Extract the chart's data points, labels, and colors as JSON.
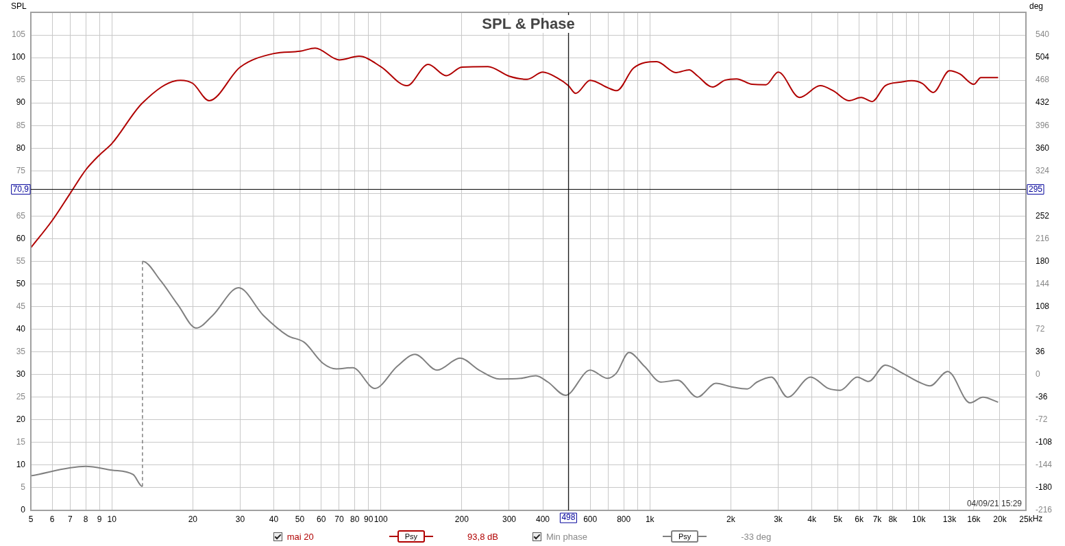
{
  "chart_data": {
    "type": "line",
    "title": "SPL & Phase",
    "ylabel": "SPL",
    "y2label": "deg",
    "xlim": [
      5,
      25000
    ],
    "xticks": [
      5,
      6,
      7,
      8,
      9,
      10,
      20,
      30,
      40,
      50,
      60,
      70,
      80,
      90,
      100,
      200,
      300,
      400,
      {
        "value": 500,
        "label": null
      },
      600,
      {
        "value": 700,
        "label": null
      },
      800,
      {
        "value": 900,
        "label": null
      },
      {
        "value": 1000,
        "label": "1k"
      },
      {
        "value": 2000,
        "label": "2k"
      },
      {
        "value": 3000,
        "label": "3k"
      },
      {
        "value": 4000,
        "label": "4k"
      },
      {
        "value": 5000,
        "label": "5k"
      },
      {
        "value": 6000,
        "label": "6k"
      },
      {
        "value": 7000,
        "label": "7k"
      },
      {
        "value": 8000,
        "label": "8k"
      },
      {
        "value": 9000,
        "label": null
      },
      {
        "value": 10000,
        "label": "10k"
      },
      {
        "value": 13000,
        "label": "13k"
      },
      {
        "value": 16000,
        "label": "16k"
      },
      {
        "value": 20000,
        "label": "20k"
      },
      {
        "value": 25000,
        "label": "25k"
      }
    ],
    "xlabel": "Hz",
    "log": "x",
    "ylim": [
      0,
      110
    ],
    "yticks": [
      0,
      5,
      10,
      15,
      20,
      25,
      30,
      35,
      40,
      45,
      50,
      55,
      60,
      65,
      {
        "value": 70,
        "label": null
      },
      75,
      80,
      85,
      90,
      95,
      100,
      105
    ],
    "y2lim": [
      -216,
      576
    ],
    "y2ticks": [
      -216,
      -180,
      -144,
      -108,
      -72,
      -36,
      0,
      36,
      72,
      108,
      144,
      180,
      216,
      252,
      324,
      360,
      396,
      432,
      468,
      504,
      540
    ],
    "grid": true,
    "legend": "bottom",
    "marker": "none",
    "ref_lines": [
      {
        "axis": "x",
        "value": 498,
        "label": "498",
        "color": "#000000"
      },
      {
        "axis": "y",
        "value": 70.9,
        "label": "70,9",
        "color": "#000000"
      }
    ],
    "annotations": [
      "Psy",
      "93,8 dB",
      "Psy",
      "-33 deg",
      "04/09/21 15:29",
      {
        "text": "295",
        "y": 70.9
      }
    ],
    "series": [
      {
        "name": "mai 20",
        "color": "#b00000",
        "x": [
          5,
          6,
          7,
          8,
          9,
          10,
          13,
          18,
          20,
          23,
          30,
          40,
          50,
          57,
          70,
          83,
          100,
          125,
          150,
          175,
          200,
          250,
          300,
          350,
          400,
          450,
          498,
          530,
          600,
          700,
          753,
          870,
          1060,
          1250,
          1400,
          1500,
          1710,
          1900,
          2100,
          2400,
          2700,
          3000,
          3600,
          4300,
          4800,
          5500,
          6100,
          6700,
          7500,
          8600,
          9400,
          10300,
          11300,
          13000,
          14200,
          16000,
          17000,
          19700
        ],
        "values": [
          58,
          64,
          70,
          75.2,
          78.5,
          81,
          90,
          95,
          94.3,
          90.5,
          97.9,
          100.9,
          101.4,
          102.1,
          99.5,
          100.3,
          98,
          93.8,
          98.5,
          96,
          97.9,
          98,
          95.9,
          95.2,
          96.8,
          95.6,
          93.8,
          92.1,
          95,
          93.3,
          92.7,
          97.7,
          99.1,
          96.7,
          97.3,
          96,
          93.5,
          95,
          95.3,
          94.1,
          94,
          96.8,
          91.2,
          93.8,
          92.7,
          90.5,
          91.2,
          90.3,
          93.8,
          94.6,
          94.9,
          94.3,
          92.3,
          97.1,
          96.4,
          94.1,
          95.6,
          95.6
        ]
      },
      {
        "name": "Min phase",
        "color": "#808080",
        "axis": "y2",
        "x": [
          5,
          8,
          10,
          12,
          13,
          13,
          15.2,
          17.6,
          20.6,
          23.7,
          29.6,
          36.6,
          45,
          52,
          60.9,
          68.4,
          78.6,
          95,
          115,
          134,
          162,
          197,
          232,
          276,
          331,
          377,
          418,
          486,
          600,
          695,
          750,
          837,
          955,
          1100,
          1270,
          1500,
          1760,
          2030,
          2300,
          2500,
          2830,
          3250,
          3960,
          4600,
          5100,
          5900,
          6500,
          7500,
          8700,
          10000,
          11000,
          12800,
          15500,
          17300,
          19700
        ],
        "values": [
          -161,
          -146,
          -152,
          -159,
          -178,
          180,
          149,
          111,
          74,
          94,
          138,
          94,
          62,
          51,
          18,
          9,
          11,
          -22,
          13,
          32,
          7,
          26,
          7,
          -7,
          -6,
          -2,
          -12,
          -33,
          7,
          -6,
          2,
          35,
          13,
          -12,
          -9,
          -36,
          -14,
          -20,
          -23,
          -12,
          -4,
          -36,
          -4,
          -22,
          -25,
          -4,
          -11,
          15,
          2,
          -12,
          -18,
          5,
          -45,
          -36,
          -44
        ]
      }
    ]
  }
}
